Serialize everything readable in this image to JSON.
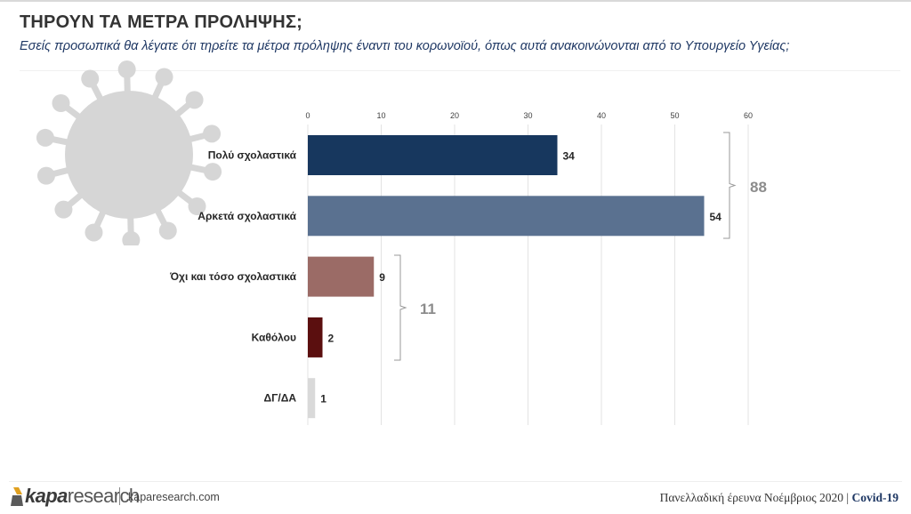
{
  "header": {
    "title": "ΤΗΡΟΥΝ ΤΑ ΜΕΤΡΑ ΠΡΟΛΗΨΗΣ;",
    "subtitle": "Εσείς προσωπικά θα λέγατε ότι τηρείτε τα μέτρα πρόληψης έναντι του κορωνοϊού, όπως αυτά ανακοινώνονται από το Υπουργείο Υγείας;"
  },
  "chart_data": {
    "type": "bar",
    "orientation": "horizontal",
    "categories": [
      "Πολύ σχολαστικά",
      "Αρκετά σχολαστικά",
      "Όχι και τόσο σχολαστικά",
      "Καθόλου",
      "ΔΓ/ΔΑ"
    ],
    "values": [
      34,
      54,
      9,
      2,
      1
    ],
    "value_labels": [
      "34",
      "54",
      "9",
      "2",
      "1"
    ],
    "colors": [
      "#17375e",
      "#5a7190",
      "#9b6b66",
      "#5b0f0f",
      "#d9d9d9"
    ],
    "xlim": [
      0,
      60
    ],
    "xticks": [
      0,
      10,
      20,
      30,
      40,
      50,
      60
    ],
    "xtick_position": "top",
    "grid": true,
    "groups": [
      {
        "label": "88",
        "value": 88,
        "categories": [
          "Πολύ σχολαστικά",
          "Αρκετά σχολαστικά"
        ]
      },
      {
        "label": "11",
        "value": 11,
        "categories": [
          "Όχι και τόσο σχολαστικά",
          "Καθόλου"
        ]
      }
    ],
    "title": "",
    "xlabel": "",
    "ylabel": ""
  },
  "footer": {
    "logo_kapa": "kapa",
    "logo_research": "research",
    "website": "kaparesearch.com",
    "survey_text": "Πανελλαδική έρευνα Νοέμβριος 2020",
    "survey_sep": "|",
    "survey_tag": "Covid-19"
  },
  "colors": {
    "title": "#333333",
    "subtitle": "#1f3864",
    "group_label": "#8c8c8c",
    "gridline": "#e3e3e3",
    "decoration": "#d9d9d9"
  }
}
